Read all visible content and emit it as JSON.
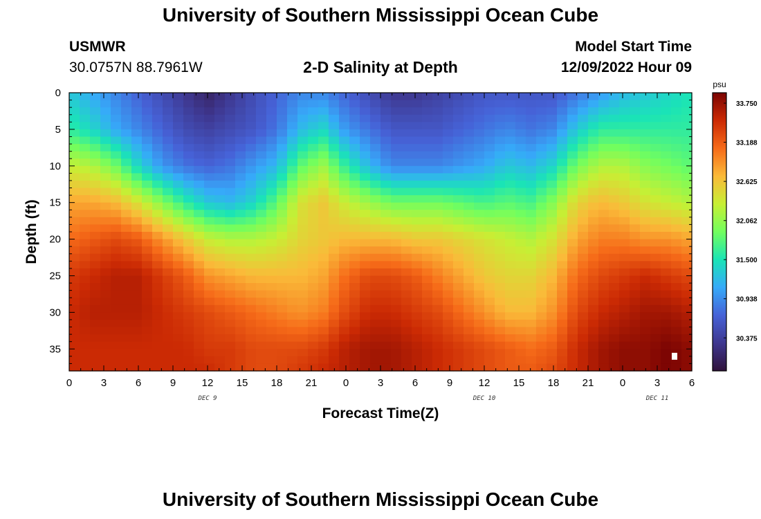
{
  "title": "University of Southern Mississippi Ocean Cube",
  "station": {
    "name": "USMWR",
    "coords": "30.0757N  88.7961W"
  },
  "plot_title": "2-D Salinity at Depth",
  "model_start": {
    "label": "Model Start Time",
    "value": "12/09/2022 Hour 09"
  },
  "bottom_title": "University of Southern Mississippi Ocean Cube",
  "colors": {
    "scale": [
      "#30123b",
      "#3e378f",
      "#4662d7",
      "#36aaf9",
      "#1ae4b6",
      "#72fe5e",
      "#c7ef34",
      "#faba39",
      "#f66b19",
      "#cb2a04",
      "#7a0403"
    ],
    "marker": "#ffffff"
  },
  "chart_data": {
    "type": "heatmap",
    "xlabel": "Forecast Time(Z)",
    "ylabel": "Depth (ft)",
    "x_ticks": [
      "0",
      "3",
      "6",
      "9",
      "12",
      "15",
      "18",
      "21",
      "0",
      "3",
      "6",
      "9",
      "12",
      "15",
      "18",
      "21",
      "0",
      "3",
      "6"
    ],
    "x_range_hours": [
      0,
      54
    ],
    "date_labels": [
      {
        "text": "DEC 9",
        "hour": 12
      },
      {
        "text": "DEC 10",
        "hour": 36
      },
      {
        "text": "DEC 11",
        "hour": 51
      }
    ],
    "y_ticks": [
      0,
      5,
      10,
      15,
      20,
      25,
      30,
      35
    ],
    "ylim": [
      0,
      38
    ],
    "y_reversed": true,
    "colorbar": {
      "unit": "psu",
      "min": 29.9,
      "max": 33.9,
      "tick_values": [
        33.75,
        33.188,
        32.625,
        32.062,
        31.5,
        30.938,
        30.375
      ],
      "tick_labels": [
        "33.750",
        "33.188",
        "32.625",
        "32.062",
        "31.500",
        "30.938",
        "30.375"
      ]
    },
    "marker": {
      "hour": 52.5,
      "depth": 36
    },
    "profile_hours": [
      0,
      2,
      4,
      6,
      8,
      10,
      12,
      14,
      16,
      18,
      20,
      22,
      24,
      26,
      28,
      30,
      32,
      34,
      36,
      38,
      40,
      42,
      44,
      46,
      48,
      50,
      52,
      54
    ],
    "profile_depths_ft": [
      0,
      5,
      10,
      15,
      20,
      25,
      30,
      35,
      38
    ],
    "salinity_psu": [
      [
        31.3,
        31.6,
        32.3,
        32.8,
        33.1,
        33.4,
        33.5,
        33.5,
        33.5
      ],
      [
        31.1,
        31.4,
        32.2,
        32.8,
        33.2,
        33.5,
        33.6,
        33.5,
        33.5
      ],
      [
        30.9,
        31.1,
        31.9,
        32.7,
        33.3,
        33.6,
        33.6,
        33.5,
        33.5
      ],
      [
        30.7,
        30.9,
        31.4,
        32.4,
        33.2,
        33.6,
        33.6,
        33.5,
        33.5
      ],
      [
        30.5,
        30.7,
        31.0,
        32.0,
        32.9,
        33.4,
        33.5,
        33.5,
        33.5
      ],
      [
        30.3,
        30.5,
        30.8,
        31.6,
        32.6,
        33.2,
        33.4,
        33.5,
        33.5
      ],
      [
        30.1,
        30.4,
        30.7,
        31.3,
        32.3,
        32.9,
        33.3,
        33.4,
        33.5
      ],
      [
        30.3,
        30.5,
        30.8,
        31.2,
        32.2,
        32.8,
        33.2,
        33.4,
        33.4
      ],
      [
        30.5,
        30.6,
        31.0,
        31.4,
        32.2,
        32.7,
        33.1,
        33.3,
        33.3
      ],
      [
        30.7,
        30.8,
        31.2,
        31.8,
        32.3,
        32.7,
        33.0,
        33.3,
        33.3
      ],
      [
        30.9,
        31.2,
        31.8,
        32.4,
        32.5,
        32.7,
        32.9,
        33.3,
        33.4
      ],
      [
        30.9,
        31.4,
        32.1,
        32.6,
        32.6,
        32.8,
        33.0,
        33.4,
        33.5
      ],
      [
        30.7,
        31.0,
        31.6,
        32.3,
        32.7,
        33.1,
        33.3,
        33.6,
        33.6
      ],
      [
        30.5,
        30.8,
        31.2,
        32.1,
        32.7,
        33.3,
        33.5,
        33.7,
        33.7
      ],
      [
        30.3,
        30.6,
        30.9,
        31.9,
        32.7,
        33.3,
        33.5,
        33.7,
        33.7
      ],
      [
        30.3,
        30.6,
        30.9,
        31.9,
        32.6,
        33.2,
        33.4,
        33.6,
        33.6
      ],
      [
        30.4,
        30.6,
        30.9,
        31.9,
        32.6,
        33.0,
        33.3,
        33.5,
        33.5
      ],
      [
        30.5,
        30.7,
        31.0,
        31.8,
        32.5,
        32.8,
        33.1,
        33.4,
        33.4
      ],
      [
        30.6,
        30.8,
        31.1,
        31.7,
        32.4,
        32.6,
        32.9,
        33.3,
        33.3
      ],
      [
        30.6,
        30.9,
        31.3,
        31.8,
        32.3,
        32.5,
        32.7,
        33.2,
        33.2
      ],
      [
        30.6,
        30.8,
        31.2,
        31.7,
        32.2,
        32.5,
        32.7,
        33.1,
        33.2
      ],
      [
        30.6,
        30.9,
        31.4,
        32.0,
        32.4,
        32.7,
        32.9,
        33.2,
        33.3
      ],
      [
        30.8,
        31.3,
        31.9,
        32.5,
        32.8,
        33.1,
        33.3,
        33.5,
        33.5
      ],
      [
        31.0,
        31.6,
        32.2,
        32.7,
        33.0,
        33.3,
        33.5,
        33.7,
        33.7
      ],
      [
        31.2,
        31.6,
        32.2,
        32.6,
        33.0,
        33.4,
        33.6,
        33.8,
        33.8
      ],
      [
        31.3,
        31.6,
        32.0,
        32.4,
        32.9,
        33.5,
        33.7,
        33.8,
        33.8
      ],
      [
        31.4,
        31.6,
        31.9,
        32.3,
        32.9,
        33.4,
        33.7,
        33.9,
        33.9
      ],
      [
        31.5,
        31.6,
        31.8,
        32.2,
        32.8,
        33.3,
        33.6,
        33.8,
        33.8
      ]
    ]
  }
}
